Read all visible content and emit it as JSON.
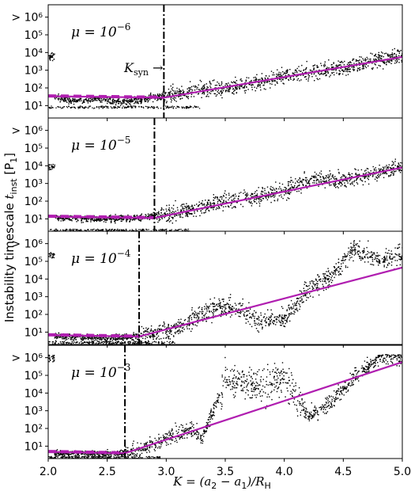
{
  "figure": {
    "ylabel_main": "Instability timescale ",
    "ylabel_sym": "t",
    "ylabel_sub": "inst",
    "ylabel_tail": " [P",
    "ylabel_tail_sub": "1",
    "ylabel_close": "]",
    "xlabel_main": "K = (a",
    "xlabel_sub1": "2",
    "xlabel_mid": " − a",
    "xlabel_sub2": "1",
    "xlabel_mid2": ")/R",
    "xlabel_sub3": "H",
    "ksyn_label": "K",
    "ksyn_sub": "syn",
    "ksyn_arrow": " →",
    "colors": {
      "scatter": "#000000",
      "fit": "#b01eb0",
      "vline": "#000000"
    }
  },
  "chart_data": [
    {
      "type": "scatter",
      "panel_label_prefix": "μ = 10",
      "panel_label_exp": "−6",
      "x_range": [
        2.0,
        5.0
      ],
      "y_scale": "log",
      "y_range_log10": [
        0.3,
        6.7
      ],
      "y_ticks": [
        "10¹",
        "10²",
        "10³",
        "10⁴",
        "10⁵",
        "> 10⁶"
      ],
      "x_ticks": [
        "2.0",
        "2.5",
        "3.0",
        "3.5",
        "4.0",
        "4.5",
        "5.0"
      ],
      "k_syn": 2.98,
      "flat_log10": 1.45,
      "fit_slope_per_unit_K": 1.3,
      "fit_end_log10": 3.75,
      "baseline_log10": 1.0,
      "scatter_pattern": "continuous",
      "points": [
        [
          2.05,
          1.5
        ],
        [
          2.2,
          1.3
        ],
        [
          2.4,
          1.4
        ],
        [
          2.6,
          1.2
        ],
        [
          2.8,
          1.4
        ],
        [
          3.0,
          1.6
        ],
        [
          3.25,
          1.9
        ],
        [
          3.5,
          2.0
        ],
        [
          3.75,
          2.3
        ],
        [
          4.0,
          2.7
        ],
        [
          4.25,
          3.0
        ],
        [
          4.5,
          3.2
        ],
        [
          4.75,
          3.6
        ],
        [
          5.0,
          3.8
        ]
      ]
    },
    {
      "type": "scatter",
      "panel_label_prefix": "μ = 10",
      "panel_label_exp": "−5",
      "x_range": [
        2.0,
        5.0
      ],
      "y_scale": "log",
      "y_range_log10": [
        0.3,
        6.7
      ],
      "y_ticks": [
        "10¹",
        "10²",
        "10³",
        "10⁴",
        "10⁵",
        "> 10⁶"
      ],
      "x_ticks": [
        "2.0",
        "2.5",
        "3.0",
        "3.5",
        "4.0",
        "4.5",
        "5.0"
      ],
      "k_syn": 2.9,
      "flat_log10": 1.05,
      "fit_slope_per_unit_K": 1.5,
      "fit_end_log10": 3.9,
      "baseline_log10": 0.45,
      "scatter_pattern": "continuous",
      "points": [
        [
          2.05,
          1.1
        ],
        [
          2.4,
          1.0
        ],
        [
          2.8,
          1.1
        ],
        [
          3.0,
          1.3
        ],
        [
          3.5,
          2.0
        ],
        [
          4.0,
          2.6
        ],
        [
          4.25,
          3.3
        ],
        [
          4.5,
          3.2
        ],
        [
          4.75,
          3.6
        ],
        [
          5.0,
          4.0
        ]
      ]
    },
    {
      "type": "scatter",
      "panel_label_prefix": "μ = 10",
      "panel_label_exp": "−4",
      "x_range": [
        2.0,
        5.0
      ],
      "y_scale": "log",
      "y_range_log10": [
        0.3,
        6.7
      ],
      "y_ticks": [
        "10¹",
        "10²",
        "10³",
        "10⁴",
        "10⁵",
        "> 10⁶"
      ],
      "x_ticks": [
        "2.0",
        "2.5",
        "3.0",
        "3.5",
        "4.0",
        "4.5",
        "5.0"
      ],
      "k_syn": 2.77,
      "flat_log10": 0.75,
      "fit_slope_per_unit_K": 1.7,
      "fit_end_log10": 4.65,
      "baseline_log10": 0.5,
      "scatter_pattern": "bumpy",
      "points": [
        [
          2.05,
          0.8
        ],
        [
          2.5,
          0.7
        ],
        [
          2.8,
          0.8
        ],
        [
          3.1,
          1.3
        ],
        [
          3.4,
          2.4
        ],
        [
          3.6,
          2.4
        ],
        [
          3.8,
          1.6
        ],
        [
          4.0,
          1.8
        ],
        [
          4.2,
          3.5
        ],
        [
          4.4,
          4.2
        ],
        [
          4.6,
          5.8
        ],
        [
          4.8,
          5.0
        ],
        [
          5.0,
          5.4
        ]
      ]
    },
    {
      "type": "scatter",
      "panel_label_prefix": "μ = 10",
      "panel_label_exp": "−3",
      "x_range": [
        2.0,
        5.0
      ],
      "y_scale": "log",
      "y_range_log10": [
        0.3,
        6.7
      ],
      "y_ticks": [
        "10¹",
        "10²",
        "10³",
        "10⁴",
        "10⁵",
        "> 10⁶"
      ],
      "x_ticks": [
        "2.0",
        "2.5",
        "3.0",
        "3.5",
        "4.0",
        "4.5",
        "5.0"
      ],
      "k_syn": 2.65,
      "flat_log10": 0.6,
      "fit_slope_per_unit_K": 2.3,
      "fit_end_log10": 5.75,
      "baseline_log10": 0.45,
      "scatter_pattern": "chaotic",
      "points": [
        [
          2.05,
          0.6
        ],
        [
          2.6,
          0.6
        ],
        [
          2.8,
          0.9
        ],
        [
          3.0,
          1.5
        ],
        [
          3.2,
          2.0
        ],
        [
          3.3,
          1.5
        ],
        [
          3.5,
          4.8
        ],
        [
          3.8,
          4.5
        ],
        [
          4.0,
          4.9
        ],
        [
          4.2,
          2.7
        ],
        [
          4.4,
          3.5
        ],
        [
          4.6,
          5.0
        ],
        [
          4.8,
          6.0
        ],
        [
          5.0,
          6.0
        ]
      ]
    }
  ]
}
